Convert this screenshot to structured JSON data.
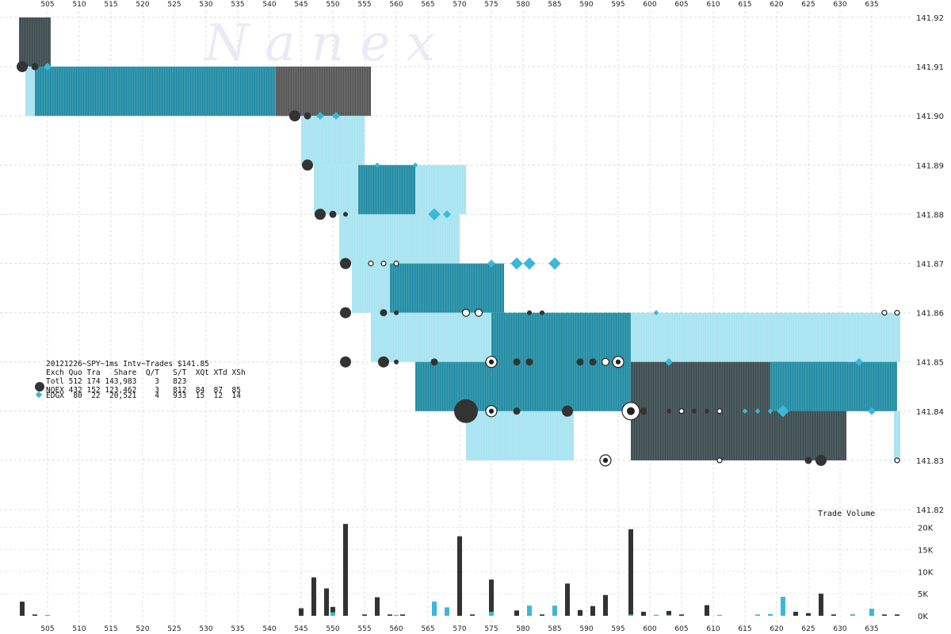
{
  "watermark": "N a n e x",
  "chart_data": [
    {
      "type": "line",
      "name_text": "20121226~SPY~1ms Intv~Trades $141.85",
      "x_ticks": [
        505,
        510,
        515,
        520,
        525,
        530,
        535,
        540,
        545,
        550,
        555,
        560,
        565,
        570,
        575,
        580,
        585,
        590,
        595,
        600,
        605,
        610,
        615,
        620,
        625,
        630,
        635
      ],
      "xlim": [
        500,
        640
      ],
      "ylim": [
        141.82,
        141.92
      ],
      "y_ticks": [
        "141.92",
        "141.91",
        "141.90",
        "141.89",
        "141.88",
        "141.87",
        "141.86",
        "141.85",
        "141.84",
        "141.83",
        "141.82"
      ],
      "grid": true,
      "quote_bands": [
        {
          "x0": 500.5,
          "x1": 505.5,
          "bid": 141.91,
          "ask": 141.92,
          "color": "#3a4a4d"
        },
        {
          "x0": 501.5,
          "x1": 556,
          "bid": 141.9,
          "ask": 141.91,
          "color": "#a6e4f0"
        },
        {
          "x0": 503,
          "x1": 555,
          "bid": 141.9,
          "ask": 141.91,
          "color": "#1f8ba3"
        },
        {
          "x0": 541,
          "x1": 556,
          "bid": 141.9,
          "ask": 141.91,
          "color": "#555555"
        },
        {
          "x0": 545,
          "x1": 555,
          "bid": 141.89,
          "ask": 141.9,
          "color": "#a6e4f0"
        },
        {
          "x0": 547,
          "x1": 571,
          "bid": 141.88,
          "ask": 141.89,
          "color": "#a6e4f0"
        },
        {
          "x0": 554,
          "x1": 563,
          "bid": 141.88,
          "ask": 141.89,
          "color": "#1f8ba3"
        },
        {
          "x0": 551,
          "x1": 570,
          "bid": 141.87,
          "ask": 141.88,
          "color": "#a6e4f0"
        },
        {
          "x0": 553,
          "x1": 577,
          "bid": 141.86,
          "ask": 141.87,
          "color": "#a6e4f0"
        },
        {
          "x0": 559,
          "x1": 577,
          "bid": 141.86,
          "ask": 141.87,
          "color": "#1f8ba3"
        },
        {
          "x0": 556,
          "x1": 575,
          "bid": 141.85,
          "ask": 141.86,
          "color": "#a6e4f0"
        },
        {
          "x0": 563,
          "x1": 575,
          "bid": 141.84,
          "ask": 141.85,
          "color": "#1f8ba3"
        },
        {
          "x0": 571,
          "x1": 588,
          "bid": 141.83,
          "ask": 141.84,
          "color": "#a6e4f0"
        },
        {
          "x0": 575,
          "x1": 597,
          "bid": 141.84,
          "ask": 141.86,
          "color": "#1f8ba3"
        },
        {
          "x0": 597,
          "x1": 639.5,
          "bid": 141.85,
          "ask": 141.86,
          "color": "#a6e4f0"
        },
        {
          "x0": 597,
          "x1": 631,
          "bid": 141.83,
          "ask": 141.85,
          "color": "#3a4a4d"
        },
        {
          "x0": 619,
          "x1": 639,
          "bid": 141.84,
          "ask": 141.85,
          "color": "#1f8ba3"
        },
        {
          "x0": 638.5,
          "x1": 639.5,
          "bid": 141.83,
          "ask": 141.84,
          "color": "#a6e4f0"
        }
      ],
      "trades": [
        {
          "exch": "NQEX",
          "x": 501,
          "price": 141.91,
          "size": "m"
        },
        {
          "exch": "NQEX",
          "x": 503,
          "price": 141.91,
          "size": "s"
        },
        {
          "exch": "EDGX",
          "x": 505,
          "price": 141.91,
          "size": "s"
        },
        {
          "exch": "NQEX",
          "x": 544,
          "price": 141.9,
          "size": "m"
        },
        {
          "exch": "NQEX",
          "x": 546,
          "price": 141.9,
          "size": "s"
        },
        {
          "exch": "EDGX",
          "x": 548,
          "price": 141.9,
          "size": "s"
        },
        {
          "exch": "EDGX",
          "x": 550.5,
          "price": 141.9,
          "size": "s"
        },
        {
          "exch": "NQEX",
          "x": 546,
          "price": 141.89,
          "size": "m"
        },
        {
          "exch": "EDGX",
          "x": 557,
          "price": 141.89,
          "size": "xs"
        },
        {
          "exch": "EDGX",
          "x": 563,
          "price": 141.89,
          "size": "xs"
        },
        {
          "exch": "NQEX",
          "x": 548,
          "price": 141.88,
          "size": "m"
        },
        {
          "exch": "NQEX",
          "x": 550,
          "price": 141.88,
          "size": "s"
        },
        {
          "exch": "NQEX",
          "x": 552,
          "price": 141.88,
          "size": "xs"
        },
        {
          "exch": "EDGX",
          "x": 566,
          "price": 141.88,
          "size": "m"
        },
        {
          "exch": "EDGX",
          "x": 568,
          "price": 141.88,
          "size": "s"
        },
        {
          "exch": "NQEX",
          "x": 552,
          "price": 141.87,
          "size": "m"
        },
        {
          "exch": "OPEN",
          "x": 556,
          "price": 141.87,
          "size": "xs"
        },
        {
          "exch": "OPEN",
          "x": 558,
          "price": 141.87,
          "size": "xs"
        },
        {
          "exch": "OPEN",
          "x": 560,
          "price": 141.87,
          "size": "xs"
        },
        {
          "exch": "EDGX",
          "x": 575,
          "price": 141.87,
          "size": "s"
        },
        {
          "exch": "EDGX",
          "x": 579,
          "price": 141.87,
          "size": "m"
        },
        {
          "exch": "EDGX",
          "x": 581,
          "price": 141.87,
          "size": "m"
        },
        {
          "exch": "EDGX",
          "x": 585,
          "price": 141.87,
          "size": "m"
        },
        {
          "exch": "NQEX",
          "x": 552,
          "price": 141.86,
          "size": "m"
        },
        {
          "exch": "NQEX",
          "x": 558,
          "price": 141.86,
          "size": "s"
        },
        {
          "exch": "NQEX",
          "x": 560,
          "price": 141.86,
          "size": "xs"
        },
        {
          "exch": "OPEN",
          "x": 571,
          "price": 141.86,
          "size": "s"
        },
        {
          "exch": "OPEN",
          "x": 573,
          "price": 141.86,
          "size": "s"
        },
        {
          "exch": "NQEX",
          "x": 581,
          "price": 141.86,
          "size": "xs"
        },
        {
          "exch": "NQEX",
          "x": 583,
          "price": 141.86,
          "size": "xs"
        },
        {
          "exch": "EDGX",
          "x": 601,
          "price": 141.86,
          "size": "xs"
        },
        {
          "exch": "OPEN",
          "x": 637,
          "price": 141.86,
          "size": "xs"
        },
        {
          "exch": "OPEN",
          "x": 639,
          "price": 141.86,
          "size": "xs"
        },
        {
          "exch": "NQEX",
          "x": 552,
          "price": 141.85,
          "size": "m"
        },
        {
          "exch": "NQEX",
          "x": 558,
          "price": 141.85,
          "size": "m"
        },
        {
          "exch": "NQEX",
          "x": 560,
          "price": 141.85,
          "size": "xs"
        },
        {
          "exch": "NQEX",
          "x": 566,
          "price": 141.85,
          "size": "s"
        },
        {
          "exch": "OPEN",
          "x": 575,
          "price": 141.85,
          "size": "m"
        },
        {
          "exch": "NQEX",
          "x": 579,
          "price": 141.85,
          "size": "s"
        },
        {
          "exch": "NQEX",
          "x": 581,
          "price": 141.85,
          "size": "s"
        },
        {
          "exch": "NQEX",
          "x": 589,
          "price": 141.85,
          "size": "s"
        },
        {
          "exch": "NQEX",
          "x": 591,
          "price": 141.85,
          "size": "s"
        },
        {
          "exch": "OPEN",
          "x": 593,
          "price": 141.85,
          "size": "s"
        },
        {
          "exch": "OPEN",
          "x": 595,
          "price": 141.85,
          "size": "m"
        },
        {
          "exch": "EDGX",
          "x": 603,
          "price": 141.85,
          "size": "s"
        },
        {
          "exch": "EDGX",
          "x": 633,
          "price": 141.85,
          "size": "s"
        },
        {
          "exch": "NQEX",
          "x": 571,
          "price": 141.84,
          "size": "xl"
        },
        {
          "exch": "OPEN",
          "x": 575,
          "price": 141.84,
          "size": "m"
        },
        {
          "exch": "NQEX",
          "x": 579,
          "price": 141.84,
          "size": "s"
        },
        {
          "exch": "NQEX",
          "x": 587,
          "price": 141.84,
          "size": "m"
        },
        {
          "exch": "OPEN",
          "x": 597,
          "price": 141.84,
          "size": "l"
        },
        {
          "exch": "NQEX",
          "x": 599,
          "price": 141.84,
          "size": "s"
        },
        {
          "exch": "NQEX",
          "x": 603,
          "price": 141.84,
          "size": "xs"
        },
        {
          "exch": "OPEN",
          "x": 605,
          "price": 141.84,
          "size": "xs"
        },
        {
          "exch": "NQEX",
          "x": 607,
          "price": 141.84,
          "size": "xs"
        },
        {
          "exch": "NQEX",
          "x": 609,
          "price": 141.84,
          "size": "xs"
        },
        {
          "exch": "OPEN",
          "x": 611,
          "price": 141.84,
          "size": "xs"
        },
        {
          "exch": "EDGX",
          "x": 615,
          "price": 141.84,
          "size": "xs"
        },
        {
          "exch": "EDGX",
          "x": 617,
          "price": 141.84,
          "size": "xs"
        },
        {
          "exch": "EDGX",
          "x": 619,
          "price": 141.84,
          "size": "xs"
        },
        {
          "exch": "EDGX",
          "x": 621,
          "price": 141.84,
          "size": "m"
        },
        {
          "exch": "EDGX",
          "x": 635,
          "price": 141.84,
          "size": "s"
        },
        {
          "exch": "OPEN",
          "x": 593,
          "price": 141.83,
          "size": "m"
        },
        {
          "exch": "OPEN",
          "x": 611,
          "price": 141.83,
          "size": "xs"
        },
        {
          "exch": "NQEX",
          "x": 625,
          "price": 141.83,
          "size": "s"
        },
        {
          "exch": "NQEX",
          "x": 627,
          "price": 141.83,
          "size": "m"
        },
        {
          "exch": "OPEN",
          "x": 639,
          "price": 141.83,
          "size": "xs"
        }
      ]
    },
    {
      "type": "bar",
      "title": "Trade Volume",
      "ylim": [
        0,
        21000
      ],
      "y_ticks": [
        "20K",
        "15K",
        "10K",
        "5K",
        "0K"
      ],
      "series": [
        {
          "exch": "NQEX",
          "color": "#333333",
          "x": [
            501,
            503,
            545,
            547,
            549,
            550,
            552,
            555,
            557,
            559,
            561,
            566,
            568,
            570,
            572,
            575,
            579,
            581,
            583,
            587,
            589,
            591,
            593,
            597,
            599,
            601,
            603,
            605,
            609,
            619,
            623,
            625,
            627,
            629,
            632,
            635,
            637,
            639
          ],
          "values": [
            3200,
            300,
            1700,
            8700,
            6200,
            2000,
            20800,
            300,
            4200,
            300,
            300,
            400,
            300,
            18000,
            300,
            8200,
            1200,
            300,
            300,
            7300,
            1300,
            2200,
            4700,
            19600,
            900,
            200,
            1100,
            300,
            2400,
            300,
            900,
            600,
            5000,
            300,
            300,
            200,
            300,
            300
          ]
        },
        {
          "exch": "EDGX",
          "color": "#3bb7d8",
          "x": [
            505,
            550,
            560,
            566,
            568,
            575,
            581,
            585,
            597,
            601,
            603,
            611,
            617,
            619,
            621,
            632,
            635
          ],
          "values": [
            200,
            800,
            200,
            3200,
            1900,
            900,
            2300,
            2300,
            300,
            200,
            200,
            200,
            300,
            400,
            4300,
            300,
            1600
          ]
        }
      ]
    }
  ],
  "stats": {
    "title": "20121226~SPY~1ms Intv~Trades $141.85",
    "header": "Exch Quo Tra   Share  Q/T   S/T  XQt XTd XSh",
    "rows": [
      {
        "label": "Totl 512 174 143,983    3   823"
      },
      {
        "label": "NQEX 432 152 123,462    3   812  84  87  85"
      },
      {
        "label": "EDGX  80  22  20,521    4   933  15  12  14"
      }
    ]
  },
  "colors": {
    "nqex": "#333333",
    "edgx": "#3bb7d8",
    "light": "#a6e4f0",
    "mid": "#1f8ba3",
    "dark": "#3a4a4d"
  }
}
